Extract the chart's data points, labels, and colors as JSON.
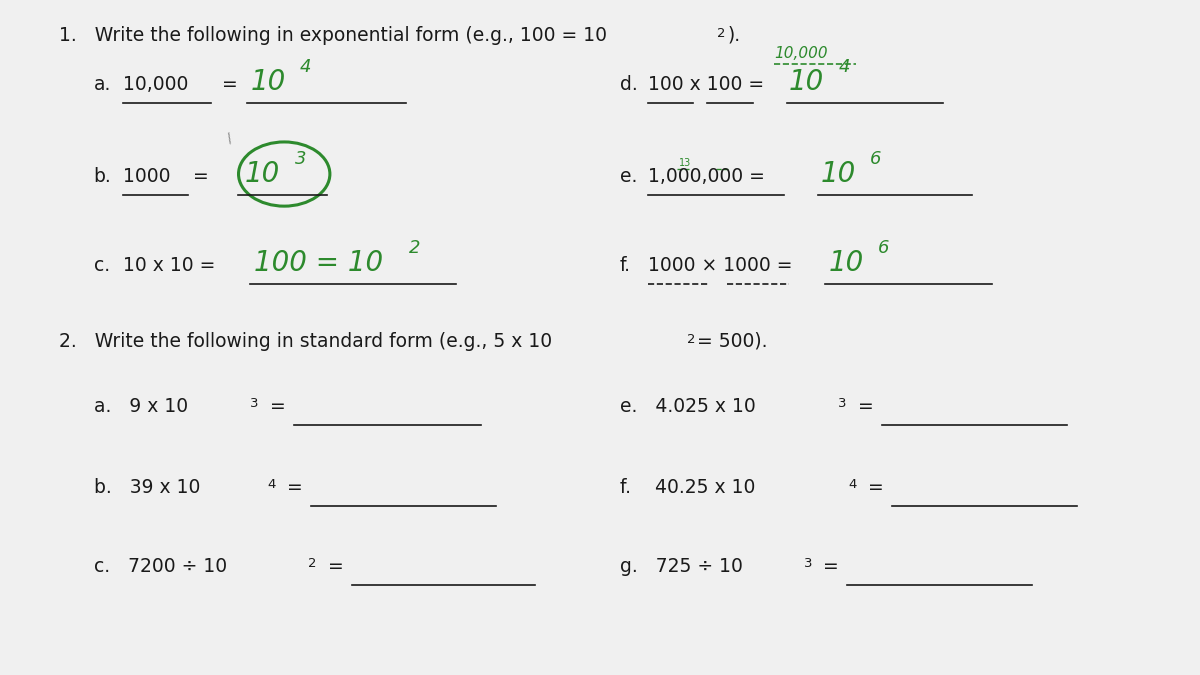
{
  "bg_color": "#f0f0f0",
  "text_color": "#1a1a1a",
  "green_color": "#2d8a2d",
  "title1": "1.   Write the following in exponential form (e.g., 100 = 10",
  "title1_exp": "2",
  "title1_end": ").",
  "title2": "2.   Write the following in standard form (e.g., 5 x 10",
  "title2_exp": "2",
  "title2_end": "= 500)."
}
